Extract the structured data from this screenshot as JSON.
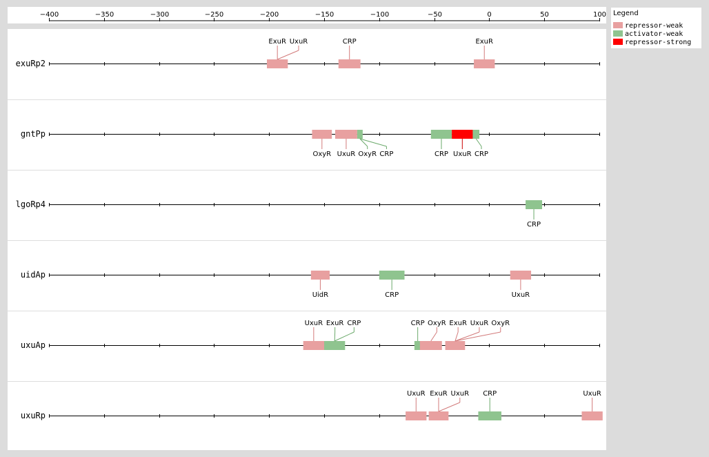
{
  "colors": {
    "repressor-weak": "#e8a0a0",
    "activator-weak": "#8fc48f",
    "repressor-strong": "#ff0000"
  },
  "axis": {
    "min": -400,
    "max": 100,
    "ticks": [
      -400,
      -350,
      -300,
      -250,
      -200,
      -150,
      -100,
      -50,
      0,
      50,
      100
    ]
  },
  "legend": {
    "title": "Legend",
    "items": [
      {
        "label": "repressor-weak",
        "kind": "repressor-weak"
      },
      {
        "label": "activator-weak",
        "kind": "activator-weak"
      },
      {
        "label": "repressor-strong",
        "kind": "repressor-strong"
      }
    ]
  },
  "promoters": [
    {
      "name": "exuRp2",
      "sites": [
        {
          "label": "ExuR",
          "kind": "repressor-weak",
          "start": -202,
          "end": -183,
          "side": "above"
        },
        {
          "label": "UxuR",
          "kind": "repressor-weak",
          "start": -202,
          "end": -183,
          "side": "above"
        },
        {
          "label": "CRP",
          "kind": "repressor-weak",
          "start": -137,
          "end": -117,
          "side": "above"
        },
        {
          "label": "ExuR",
          "kind": "repressor-weak",
          "start": -14,
          "end": 5,
          "side": "above"
        }
      ]
    },
    {
      "name": "gntPp",
      "sites": [
        {
          "label": "OxyR",
          "kind": "repressor-weak",
          "start": -161,
          "end": -143,
          "side": "below"
        },
        {
          "label": "UxuR",
          "kind": "repressor-weak",
          "start": -140,
          "end": -120,
          "side": "below"
        },
        {
          "label": "OxyR",
          "kind": "activator-weak",
          "start": -120,
          "end": -115,
          "side": "below"
        },
        {
          "label": "CRP",
          "kind": "activator-weak",
          "start": -120,
          "end": -115,
          "side": "below"
        },
        {
          "label": "CRP",
          "kind": "activator-weak",
          "start": -53,
          "end": -34,
          "side": "below"
        },
        {
          "label": "UxuR",
          "kind": "repressor-strong",
          "start": -34,
          "end": -15,
          "side": "below"
        },
        {
          "label": "CRP",
          "kind": "activator-weak",
          "start": -15,
          "end": -9,
          "side": "below"
        }
      ]
    },
    {
      "name": "lgoRp4",
      "sites": [
        {
          "label": "CRP",
          "kind": "activator-weak",
          "start": 33,
          "end": 48,
          "side": "below"
        }
      ]
    },
    {
      "name": "uidAp",
      "sites": [
        {
          "label": "UidR",
          "kind": "repressor-weak",
          "start": -162,
          "end": -145,
          "side": "below"
        },
        {
          "label": "CRP",
          "kind": "activator-weak",
          "start": -100,
          "end": -77,
          "side": "below"
        },
        {
          "label": "UxuR",
          "kind": "repressor-weak",
          "start": 19,
          "end": 38,
          "side": "below"
        }
      ]
    },
    {
      "name": "uxuAp",
      "sites": [
        {
          "label": "UxuR",
          "kind": "repressor-weak",
          "start": -169,
          "end": -150,
          "side": "above"
        },
        {
          "label": "ExuR",
          "kind": "activator-weak",
          "start": -150,
          "end": -131,
          "side": "above"
        },
        {
          "label": "CRP",
          "kind": "activator-weak",
          "start": -150,
          "end": -131,
          "side": "above"
        },
        {
          "label": "CRP",
          "kind": "activator-weak",
          "start": -68,
          "end": -62,
          "side": "above"
        },
        {
          "label": "OxyR",
          "kind": "repressor-weak",
          "start": -63,
          "end": -43,
          "side": "above"
        },
        {
          "label": "ExuR",
          "kind": "repressor-weak",
          "start": -40,
          "end": -22,
          "side": "above"
        },
        {
          "label": "UxuR",
          "kind": "repressor-weak",
          "start": -40,
          "end": -22,
          "side": "above"
        },
        {
          "label": "OxyR",
          "kind": "repressor-weak",
          "start": -40,
          "end": -22,
          "side": "above"
        }
      ]
    },
    {
      "name": "uxuRp",
      "sites": [
        {
          "label": "UxuR",
          "kind": "repressor-weak",
          "start": -76,
          "end": -57,
          "side": "above"
        },
        {
          "label": "ExuR",
          "kind": "repressor-weak",
          "start": -55,
          "end": -37,
          "side": "above"
        },
        {
          "label": "UxuR",
          "kind": "repressor-weak",
          "start": -55,
          "end": -37,
          "side": "above"
        },
        {
          "label": "CRP",
          "kind": "activator-weak",
          "start": -10,
          "end": 11,
          "side": "above"
        },
        {
          "label": "UxuR",
          "kind": "repressor-weak",
          "start": 84,
          "end": 103,
          "side": "above"
        }
      ]
    }
  ]
}
